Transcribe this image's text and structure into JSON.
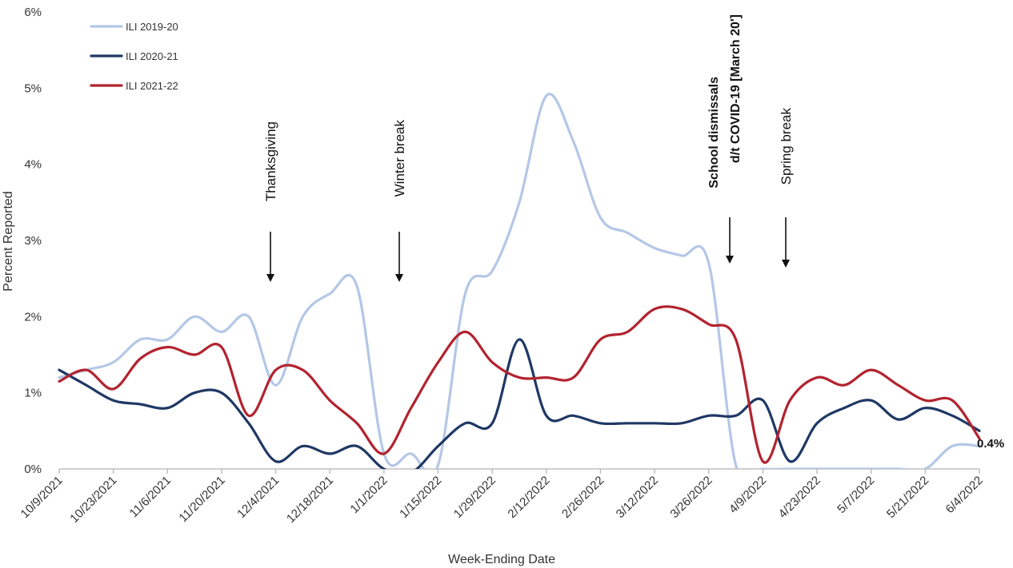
{
  "chart_data": {
    "type": "line",
    "xlabel": "Week-Ending Date",
    "ylabel": "Percent Reported",
    "ylim": [
      0,
      6
    ],
    "yticks": [
      {
        "value": 0,
        "label": "0%"
      },
      {
        "value": 1,
        "label": "1%"
      },
      {
        "value": 2,
        "label": "2%"
      },
      {
        "value": 3,
        "label": "3%"
      },
      {
        "value": 4,
        "label": "4%"
      },
      {
        "value": 5,
        "label": "5%"
      },
      {
        "value": 6,
        "label": "6%"
      }
    ],
    "x": [
      "10/9/2021",
      "10/16/2021",
      "10/23/2021",
      "10/30/2021",
      "11/6/2021",
      "11/13/2021",
      "11/20/2021",
      "11/27/2021",
      "12/4/2021",
      "12/11/2021",
      "12/18/2021",
      "12/25/2021",
      "1/1/2022",
      "1/8/2022",
      "1/15/2022",
      "1/22/2022",
      "1/29/2022",
      "2/5/2022",
      "2/12/2022",
      "2/19/2022",
      "2/26/2022",
      "3/5/2022",
      "3/12/2022",
      "3/19/2022",
      "3/26/2022",
      "4/2/2022",
      "4/9/2022",
      "4/16/2022",
      "4/23/2022",
      "4/30/2022",
      "5/7/2022",
      "5/14/2022",
      "5/21/2022",
      "5/28/2022",
      "6/4/2022"
    ],
    "xtick_labels": [
      "10/9/2021",
      "10/23/2021",
      "11/6/2021",
      "11/20/2021",
      "12/4/2021",
      "12/18/2021",
      "1/1/2022",
      "1/15/2022",
      "1/29/2022",
      "2/12/2022",
      "2/26/2022",
      "3/12/2022",
      "3/26/2022",
      "4/9/2022",
      "4/23/2022",
      "5/7/2022",
      "5/21/2022",
      "6/4/2022"
    ],
    "series": [
      {
        "name": "ILI 2019-20",
        "color": "#b4c7e7",
        "values": [
          1.2,
          1.3,
          1.4,
          1.7,
          1.7,
          2.0,
          1.8,
          2.0,
          1.1,
          2.0,
          2.3,
          2.4,
          0.2,
          0.2,
          0.05,
          2.3,
          2.6,
          3.5,
          4.9,
          4.3,
          3.3,
          3.1,
          2.9,
          2.8,
          2.7,
          0.05,
          0,
          0,
          0,
          0,
          0,
          0,
          0,
          0.3,
          0.3
        ]
      },
      {
        "name": "ILI 2020-21",
        "color": "#1f3864",
        "values": [
          1.3,
          1.1,
          0.9,
          0.85,
          0.8,
          1.0,
          1.0,
          0.6,
          0.1,
          0.3,
          0.2,
          0.3,
          0,
          -0.05,
          0.3,
          0.6,
          0.6,
          1.7,
          0.7,
          0.7,
          0.6,
          0.6,
          0.6,
          0.6,
          0.7,
          0.7,
          0.9,
          0.1,
          0.6,
          0.8,
          0.9,
          0.65,
          0.8,
          0.7,
          0.5
        ]
      },
      {
        "name": "ILI 2021-22",
        "color": "#b2232f",
        "values": [
          1.15,
          1.3,
          1.05,
          1.45,
          1.6,
          1.5,
          1.6,
          0.7,
          1.3,
          1.3,
          0.9,
          0.6,
          0.2,
          0.8,
          1.4,
          1.8,
          1.4,
          1.2,
          1.2,
          1.2,
          1.7,
          1.8,
          2.1,
          2.1,
          1.9,
          1.7,
          0.1,
          0.9,
          1.2,
          1.1,
          1.3,
          1.1,
          0.9,
          0.9,
          0.4
        ]
      }
    ],
    "end_label": "0.4%",
    "annotations": [
      {
        "text": "Thanksgiving",
        "x": "11/27/2021",
        "bold": false
      },
      {
        "text": "Winter break",
        "x": "1/1/2022",
        "bold": false
      },
      {
        "text": "School dismissals",
        "text2": "d/t COVID-19 [March 20']",
        "x": "3/26/2022",
        "bold": true
      },
      {
        "text": "Spring break",
        "x": "4/9/2022",
        "bold": false
      }
    ],
    "legend_position": "top-left",
    "grid": false
  }
}
